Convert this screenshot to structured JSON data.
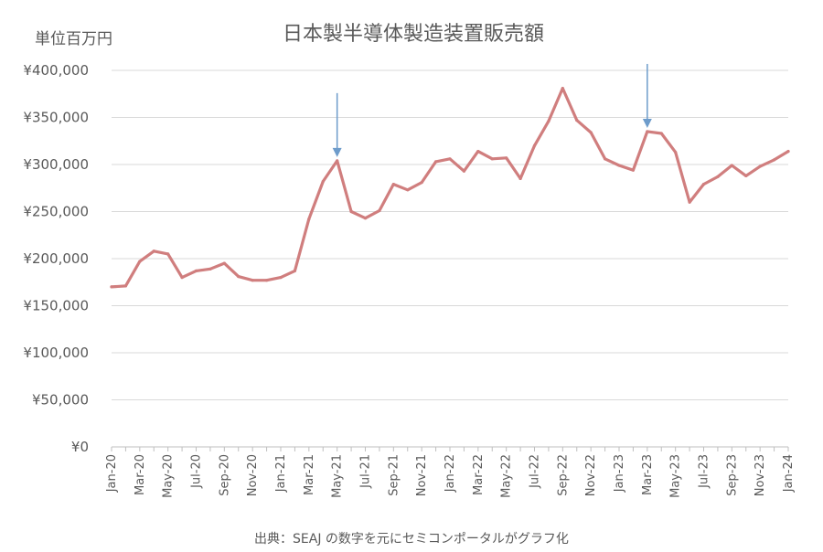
{
  "chart_data": {
    "type": "line",
    "title": "日本製半導体製造装置販売額",
    "ylabel": "単位百万円",
    "source": "出典：SEAJ の数字を元にセミコンポータルがグラフ化",
    "ylim": [
      0,
      400000
    ],
    "y_ticks": [
      "¥0",
      "¥50,000",
      "¥100,000",
      "¥150,000",
      "¥200,000",
      "¥250,000",
      "¥300,000",
      "¥350,000",
      "¥400,000"
    ],
    "x_tick_labels": [
      "Jan-20",
      "Mar-20",
      "May-20",
      "Jul-20",
      "Sep-20",
      "Nov-20",
      "Jan-21",
      "Mar-21",
      "May-21",
      "Jul-21",
      "Sep-21",
      "Nov-21",
      "Jan-22",
      "Mar-22",
      "May-22",
      "Jul-22",
      "Sep-22",
      "Nov-22",
      "Jan-23",
      "Mar-23",
      "May-23",
      "Jul-23",
      "Sep-23",
      "Nov-23",
      "Jan-24"
    ],
    "grid": true,
    "line_color": "#d07e7e",
    "arrow_color": "#6e9ccb",
    "series": [
      {
        "values": [
          170000,
          171000,
          197000,
          208000,
          205000,
          180000,
          187000,
          189000,
          195000,
          181000,
          177000,
          177000,
          180000,
          187000,
          242000,
          282000,
          304000,
          250000,
          243000,
          251000,
          279000,
          273000,
          281000,
          303000,
          306000,
          293000,
          314000,
          306000,
          307000,
          285000,
          320000,
          346000,
          381000,
          347000,
          334000,
          306000,
          299000,
          294000,
          335000,
          333000,
          313000,
          260000,
          279000,
          287000,
          299000,
          288000,
          298000,
          305000,
          314000
        ]
      }
    ],
    "arrows": [
      {
        "month_index": 16,
        "value": 304000
      },
      {
        "month_index": 38,
        "value": 335000
      }
    ]
  }
}
